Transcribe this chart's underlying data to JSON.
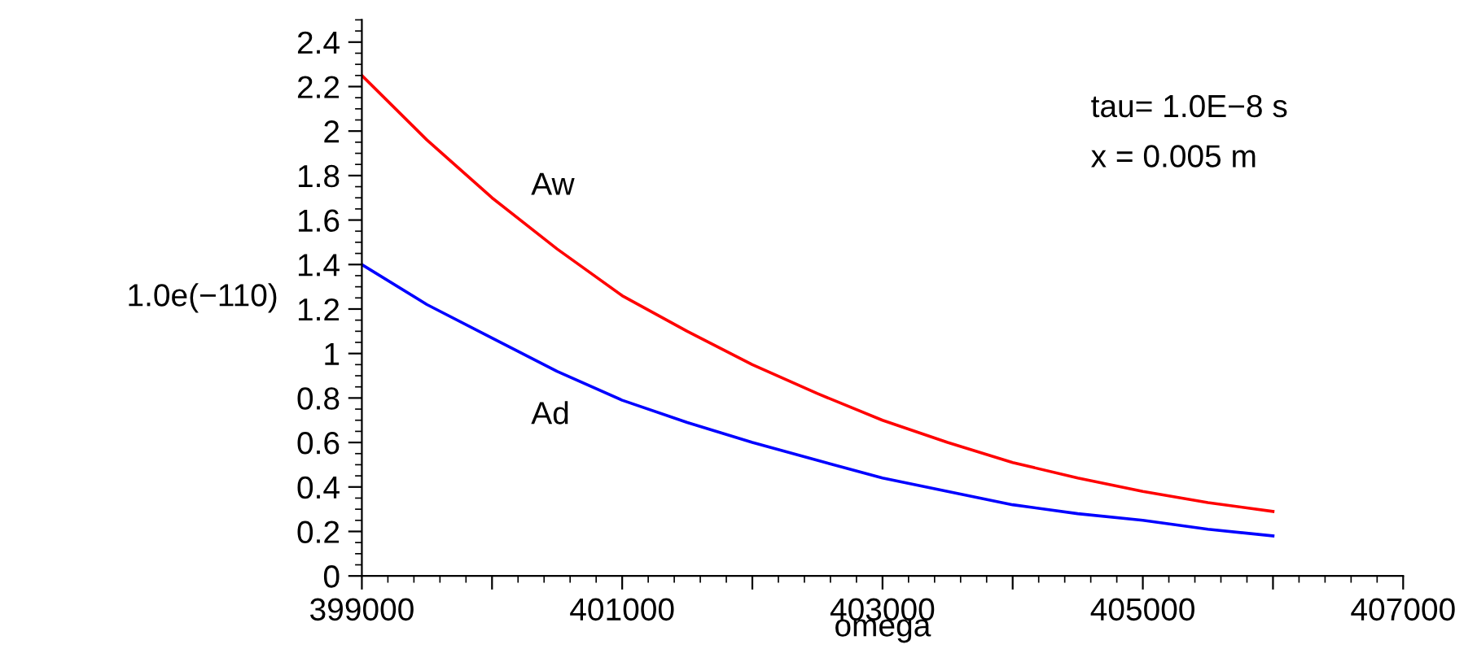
{
  "chart_data": {
    "type": "line",
    "xlabel": "omega",
    "ylabel": "1.0e(−110)",
    "x": [
      399000,
      399500,
      400000,
      400500,
      401000,
      401500,
      402000,
      402500,
      403000,
      403500,
      404000,
      404500,
      405000,
      405500,
      406000
    ],
    "series": [
      {
        "name": "Aw",
        "color": "#ff0000",
        "values": [
          2.25,
          1.96,
          1.7,
          1.47,
          1.26,
          1.1,
          0.95,
          0.82,
          0.7,
          0.6,
          0.51,
          0.44,
          0.38,
          0.33,
          0.29
        ]
      },
      {
        "name": "Ad",
        "color": "#0000ff",
        "values": [
          1.4,
          1.22,
          1.07,
          0.92,
          0.79,
          0.69,
          0.6,
          0.52,
          0.44,
          0.38,
          0.32,
          0.28,
          0.25,
          0.21,
          0.18
        ]
      }
    ],
    "annotations": [
      "tau= 1.0E−8 s",
      "x = 0.005 m"
    ],
    "xlim": [
      399000,
      407000
    ],
    "xticks": [
      399000,
      {
        "value": 400000,
        "label": null
      },
      401000,
      {
        "value": 402000,
        "label": null
      },
      403000,
      {
        "value": 404000,
        "label": null
      },
      405000,
      {
        "value": 406000,
        "label": null
      },
      407000
    ],
    "ylim": [
      0,
      2.5
    ],
    "yticks": [
      0,
      0.2,
      0.4,
      0.6,
      0.8,
      1,
      1.2,
      1.4,
      1.6,
      1.8,
      2,
      2.2,
      2.4
    ],
    "grid": false,
    "legend": false,
    "marker": "none",
    "line_style": "solid"
  }
}
